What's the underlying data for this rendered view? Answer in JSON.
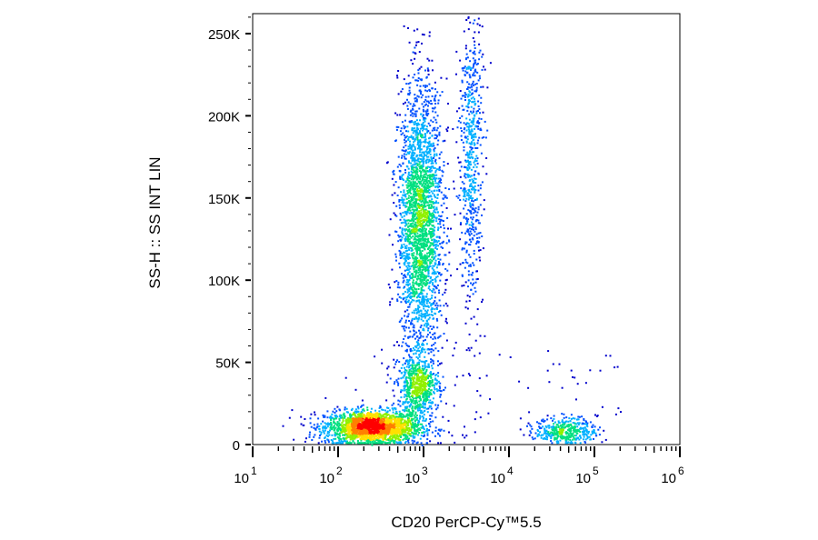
{
  "chart_data": {
    "type": "scatter",
    "subtype": "flow-cytometry-density-dot-plot",
    "xlabel": "CD20 PerCP-Cy™5.5",
    "ylabel": "SS-H :: SS INT LIN",
    "xscale": "log",
    "yscale": "linear",
    "xlim": [
      10,
      1000000
    ],
    "ylim": [
      0,
      262144
    ],
    "x_ticks": [
      {
        "value": 10,
        "base": "10",
        "exp": "1"
      },
      {
        "value": 100,
        "base": "10",
        "exp": "2"
      },
      {
        "value": 1000,
        "base": "10",
        "exp": "3"
      },
      {
        "value": 10000,
        "base": "10",
        "exp": "4"
      },
      {
        "value": 100000,
        "base": "10",
        "exp": "5"
      },
      {
        "value": 1000000,
        "base": "10",
        "exp": "6"
      }
    ],
    "y_ticks": [
      {
        "value": 0,
        "label": "0"
      },
      {
        "value": 50000,
        "label": "50K"
      },
      {
        "value": 100000,
        "label": "100K"
      },
      {
        "value": 150000,
        "label": "150K"
      },
      {
        "value": 200000,
        "label": "200K"
      },
      {
        "value": 250000,
        "label": "250K"
      }
    ],
    "density_colors": [
      "#0000cc",
      "#0050ff",
      "#00b0ff",
      "#00e080",
      "#90f000",
      "#ffe000",
      "#ff8000",
      "#ff0000"
    ],
    "populations": [
      {
        "x_center": 250,
        "x_spread_decades": 0.28,
        "y_center": 11000,
        "y_spread": 5000,
        "events": 2200
      },
      {
        "x_center": 900,
        "x_spread_decades": 0.13,
        "y_center": 135000,
        "y_spread": 42000,
        "events": 2600
      },
      {
        "x_center": 850,
        "x_spread_decades": 0.12,
        "y_center": 36000,
        "y_spread": 9000,
        "events": 650
      },
      {
        "x_center": 3500,
        "x_spread_decades": 0.07,
        "y_center": 175000,
        "y_spread": 48000,
        "events": 650
      },
      {
        "x_center": 45000,
        "x_spread_decades": 0.18,
        "y_center": 9000,
        "y_spread": 4000,
        "events": 400
      }
    ]
  }
}
